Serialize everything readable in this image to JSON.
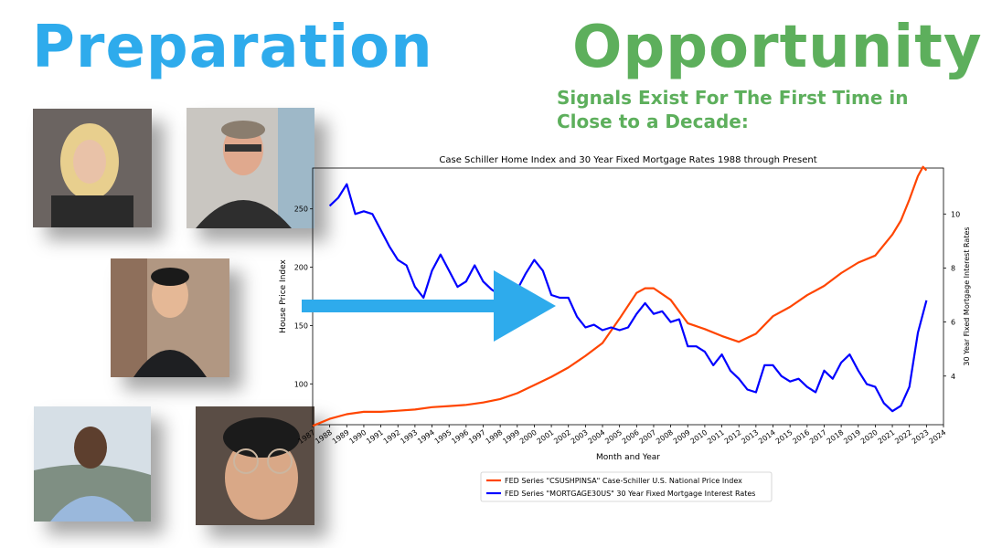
{
  "headline": {
    "left": "Preparation",
    "right": "Opportunity"
  },
  "subtitle": "Signals Exist For The First Time in Close to a Decade:",
  "colors": {
    "preparation": "#2EABEC",
    "opportunity": "#5DAF5C",
    "price_series": "#FF4500",
    "rate_series": "#0000FF",
    "arrow": "#2EABEC"
  },
  "photos": [
    {
      "name": "photo-woman-blonde"
    },
    {
      "name": "photo-man-glasses-suit"
    },
    {
      "name": "photo-man-smiling-suit"
    },
    {
      "name": "photo-man-blue-shirt"
    },
    {
      "name": "photo-man-glasses-selfie"
    }
  ],
  "arrow_icon": "right-arrow-icon",
  "chart_data": {
    "type": "line",
    "title": "Case Schiller Home Index and 30 Year Fixed Mortgage Rates 1988 through Present",
    "xlabel": "Month and Year",
    "ylabel_left": "House Price Index",
    "ylabel_right": "30 Year Fixed Mortgage Interest Rates",
    "x_ticks": [
      "1987",
      "1988",
      "1989",
      "1990",
      "1991",
      "1992",
      "1993",
      "1994",
      "1995",
      "1996",
      "1997",
      "1998",
      "1999",
      "2000",
      "2001",
      "2002",
      "2003",
      "2004",
      "2005",
      "2006",
      "2007",
      "2008",
      "2009",
      "2010",
      "2011",
      "2012",
      "2013",
      "2014",
      "2015",
      "2016",
      "2017",
      "2018",
      "2019",
      "2020",
      "2021",
      "2022",
      "2023",
      "2024"
    ],
    "xlim": [
      1987,
      2024
    ],
    "ylim_left": [
      65,
      285
    ],
    "ylim_right": [
      2.2,
      11.7
    ],
    "y_ticks_left": [
      100,
      150,
      200,
      250
    ],
    "y_ticks_right": [
      4,
      6,
      8,
      10
    ],
    "legend": "bottom-center",
    "grid": false,
    "series": [
      {
        "name": "FED Series \"CSUSHPINSA\" Case-Schiller U.S. National Price Index",
        "axis": "left",
        "x": [
          1987,
          1988,
          1989,
          1990,
          1991,
          1992,
          1993,
          1994,
          1995,
          1996,
          1997,
          1998,
          1999,
          2000,
          2001,
          2002,
          2003,
          2004,
          2005,
          2006,
          2006.5,
          2007,
          2008,
          2009,
          2010,
          2011,
          2012,
          2013,
          2014,
          2015,
          2016,
          2017,
          2018,
          2019,
          2020,
          2021,
          2021.5,
          2022,
          2022.5,
          2022.8,
          2023
        ],
        "y": [
          64,
          70,
          74,
          76,
          76,
          77,
          78,
          80,
          81,
          82,
          84,
          87,
          92,
          99,
          106,
          114,
          124,
          135,
          156,
          178,
          182,
          182,
          172,
          152,
          147,
          141,
          136,
          143,
          158,
          166,
          176,
          184,
          195,
          204,
          210,
          228,
          240,
          258,
          278,
          286,
          283
        ]
      },
      {
        "name": "FED Series \"MORTGAGE30US\" 30 Year Fixed Mortgage Interest Rates",
        "axis": "right",
        "x": [
          1988,
          1988.5,
          1989,
          1989.5,
          1990,
          1990.5,
          1991,
          1991.5,
          1992,
          1992.5,
          1993,
          1993.5,
          1994,
          1994.5,
          1995,
          1995.5,
          1996,
          1996.5,
          1997,
          1997.5,
          1998,
          1998.5,
          1999,
          1999.5,
          2000,
          2000.5,
          2001,
          2001.5,
          2002,
          2002.5,
          2003,
          2003.5,
          2004,
          2004.5,
          2005,
          2005.5,
          2006,
          2006.5,
          2007,
          2007.5,
          2008,
          2008.5,
          2009,
          2009.5,
          2010,
          2010.5,
          2011,
          2011.5,
          2012,
          2012.5,
          2013,
          2013.5,
          2014,
          2014.5,
          2015,
          2015.5,
          2016,
          2016.5,
          2017,
          2017.5,
          2018,
          2018.5,
          2019,
          2019.5,
          2020,
          2020.5,
          2021,
          2021.5,
          2022,
          2022.5,
          2023
        ],
        "y": [
          10.3,
          10.6,
          11.1,
          10.0,
          10.1,
          10.0,
          9.4,
          8.8,
          8.3,
          8.1,
          7.3,
          6.9,
          7.9,
          8.5,
          7.9,
          7.3,
          7.5,
          8.1,
          7.5,
          7.2,
          7.0,
          6.9,
          7.2,
          7.8,
          8.3,
          7.9,
          7.0,
          6.9,
          6.9,
          6.2,
          5.8,
          5.9,
          5.7,
          5.8,
          5.7,
          5.8,
          6.3,
          6.7,
          6.3,
          6.4,
          6.0,
          6.1,
          5.1,
          5.1,
          4.9,
          4.4,
          4.8,
          4.2,
          3.9,
          3.5,
          3.4,
          4.4,
          4.4,
          4.0,
          3.8,
          3.9,
          3.6,
          3.4,
          4.2,
          3.9,
          4.5,
          4.8,
          4.2,
          3.7,
          3.6,
          3.0,
          2.7,
          2.9,
          3.6,
          5.6,
          6.8
        ]
      }
    ]
  }
}
